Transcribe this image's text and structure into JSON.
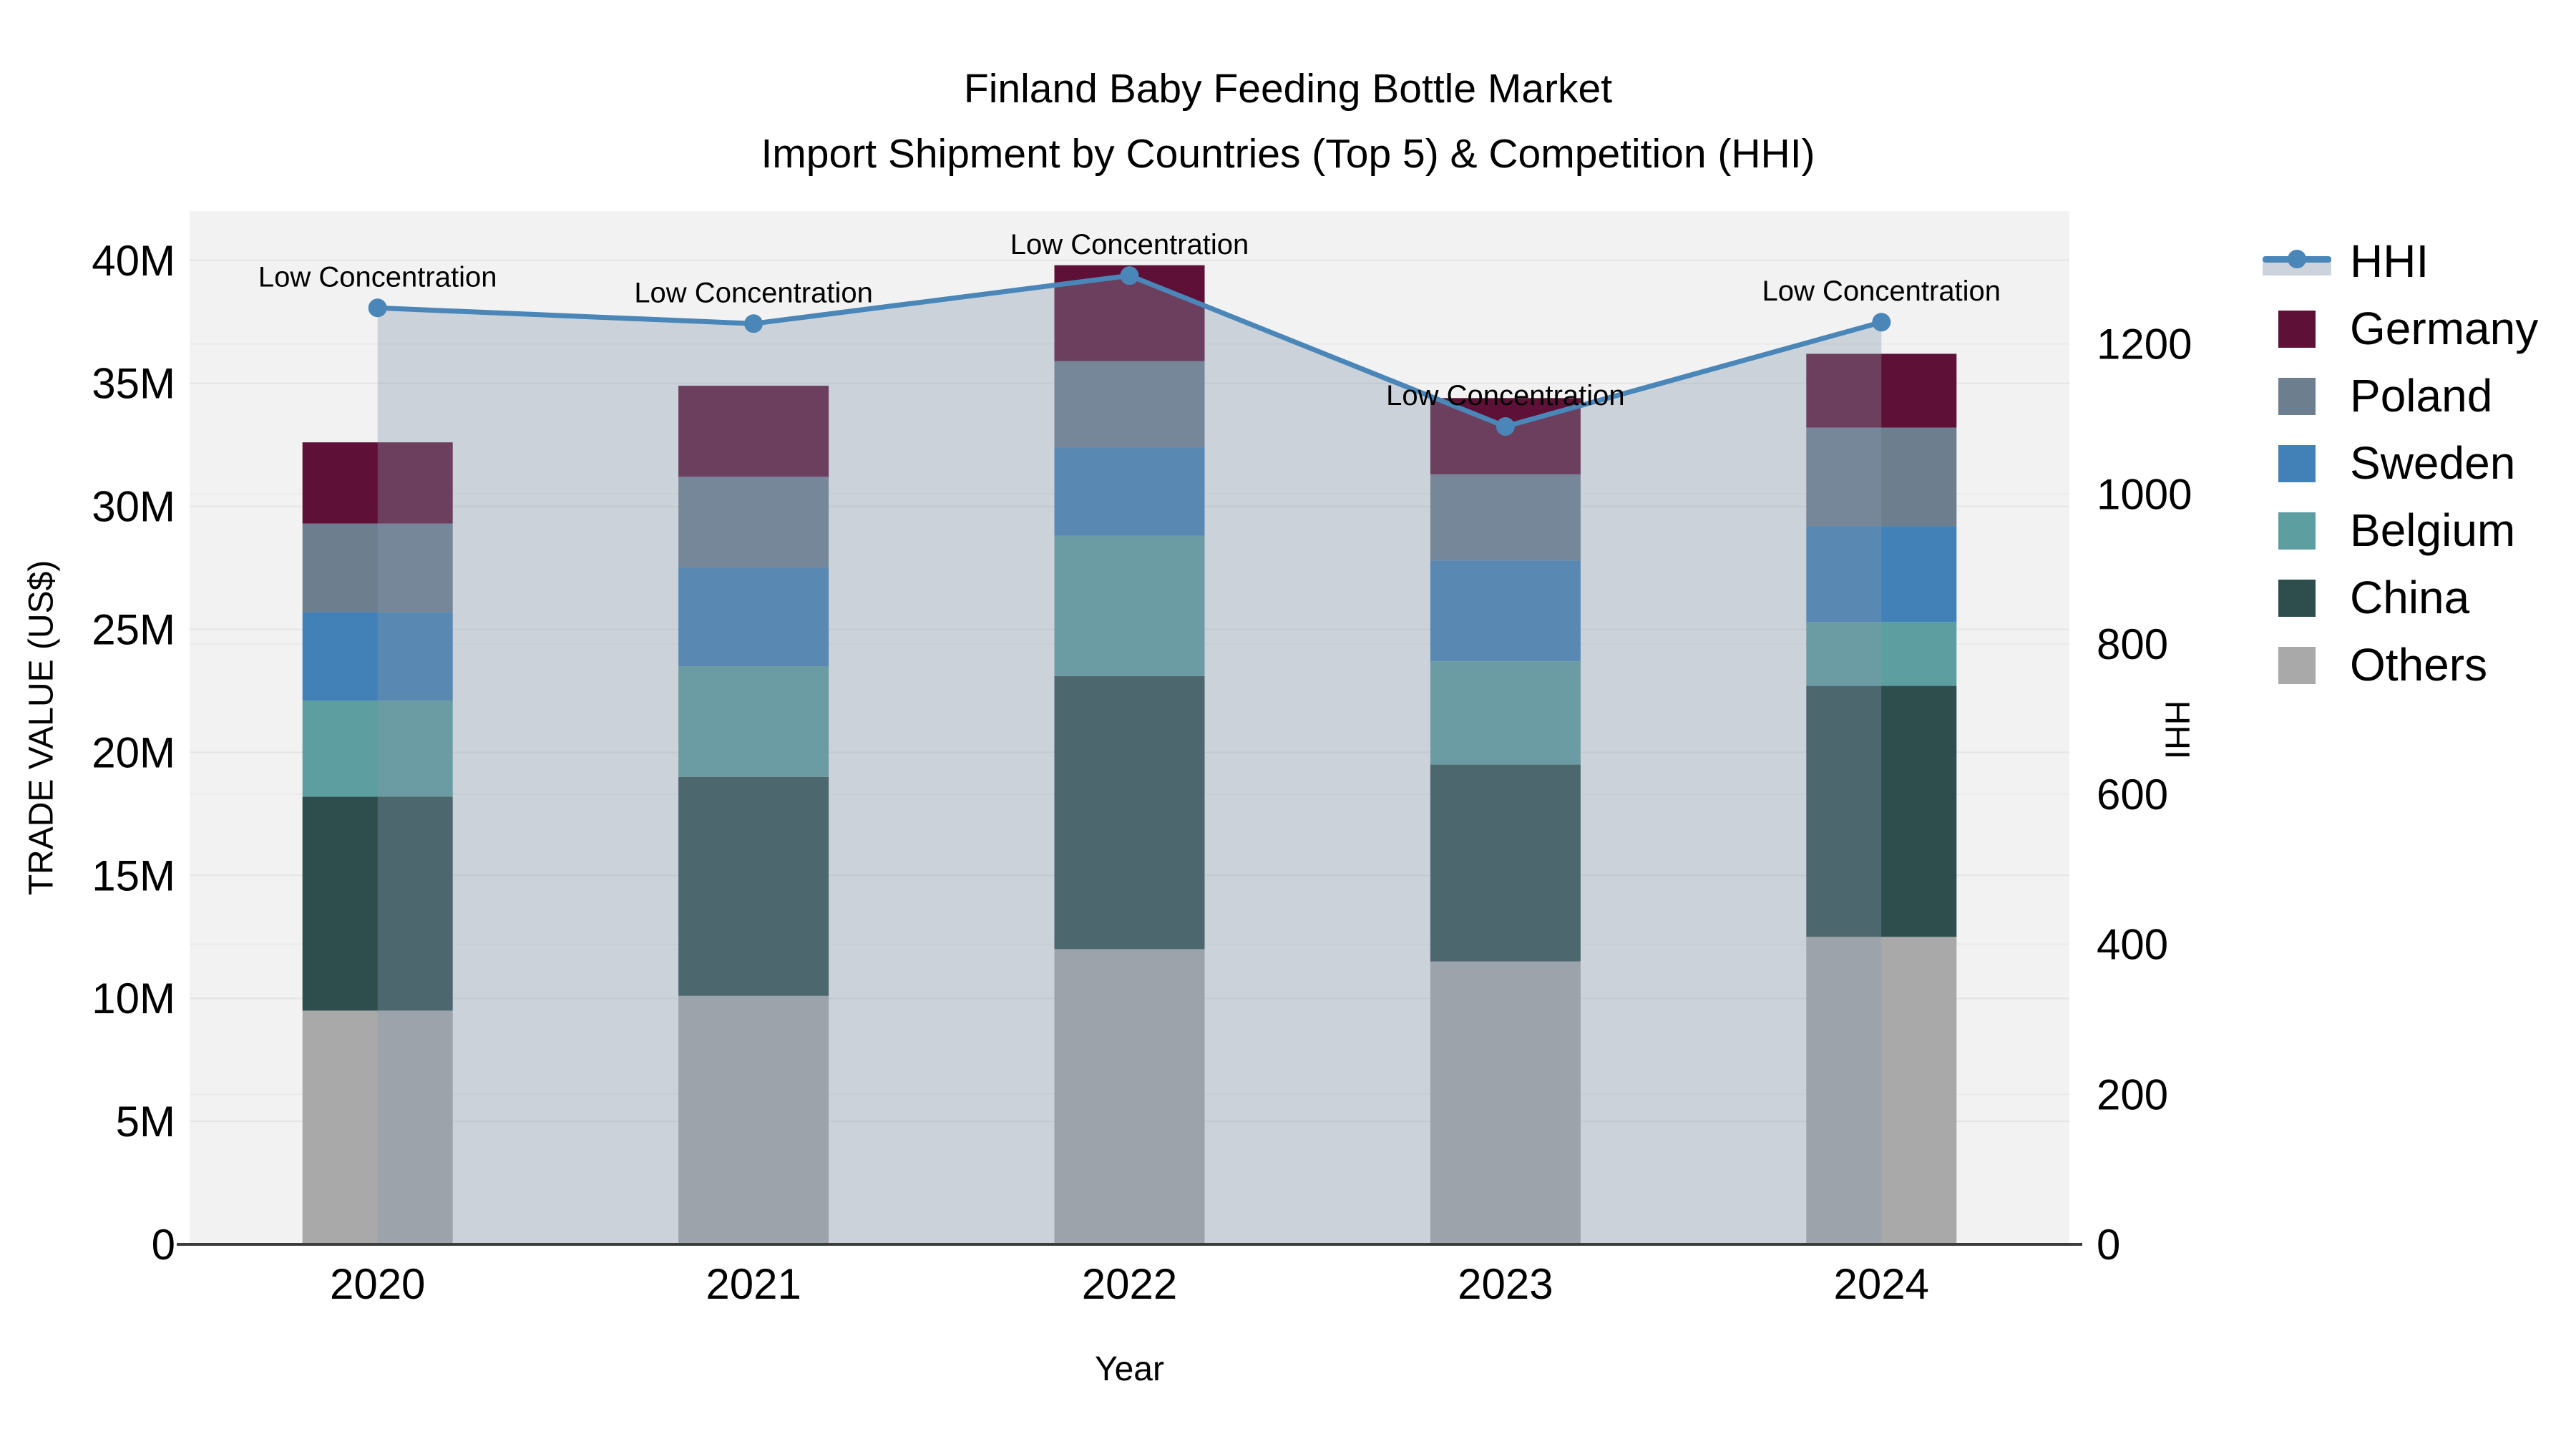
{
  "title": {
    "line1": "Finland Baby Feeding Bottle Market",
    "line2": "Import Shipment by Countries (Top 5) & Competition (HHI)"
  },
  "axes": {
    "left_title": "TRADE VALUE (US$)",
    "right_title": "HHI",
    "x_title": "Year"
  },
  "legend": {
    "items": [
      {
        "label": "HHI",
        "type": "line",
        "color": "#4a86b8"
      },
      {
        "label": "Germany",
        "type": "swatch",
        "color": "#5e1037"
      },
      {
        "label": "Poland",
        "type": "swatch",
        "color": "#6d7f8f"
      },
      {
        "label": "Sweden",
        "type": "swatch",
        "color": "#4181b7"
      },
      {
        "label": "Belgium",
        "type": "swatch",
        "color": "#5d9ea0"
      },
      {
        "label": "China",
        "type": "swatch",
        "color": "#2e4d4d"
      },
      {
        "label": "Others",
        "type": "swatch",
        "color": "#a9a9a9"
      }
    ]
  },
  "chart_data": {
    "type": "bar+line",
    "bar_mode": "stacked",
    "categories": [
      "2020",
      "2021",
      "2022",
      "2023",
      "2024"
    ],
    "series": [
      {
        "name": "Others",
        "color": "#a9a9a9",
        "values": [
          9.5,
          10.1,
          12.0,
          11.5,
          12.5
        ]
      },
      {
        "name": "China",
        "color": "#2e4d4d",
        "values": [
          8.7,
          8.9,
          11.1,
          8.0,
          10.2
        ]
      },
      {
        "name": "Belgium",
        "color": "#5d9ea0",
        "values": [
          3.9,
          4.5,
          5.7,
          4.2,
          2.6
        ]
      },
      {
        "name": "Sweden",
        "color": "#4181b7",
        "values": [
          3.6,
          4.0,
          3.6,
          4.1,
          3.9
        ]
      },
      {
        "name": "Poland",
        "color": "#6d7f8f",
        "values": [
          3.6,
          3.7,
          3.5,
          3.5,
          4.0
        ]
      },
      {
        "name": "Germany",
        "color": "#5e1037",
        "values": [
          3.3,
          3.7,
          3.9,
          3.1,
          3.0
        ]
      }
    ],
    "bar_totals": [
      32.6,
      34.9,
      39.8,
      34.4,
      36.2
    ],
    "line_series": {
      "name": "HHI",
      "axis": "right",
      "color": "#4a86b8",
      "fill_color": "rgba(136,151,171,0.35)",
      "values": [
        1248,
        1227,
        1291,
        1090,
        1229
      ]
    },
    "annotations": [
      "Low Concentration",
      "Low Concentration",
      "Low Concentration",
      "Low Concentration",
      "Low Concentration"
    ],
    "left_axis": {
      "title": "TRADE VALUE (US$)",
      "range": [
        0,
        42
      ],
      "tick_values": [
        0,
        5,
        10,
        15,
        20,
        25,
        30,
        35,
        40
      ],
      "tick_labels": [
        "0",
        "5M",
        "10M",
        "15M",
        "20M",
        "25M",
        "30M",
        "35M",
        "40M"
      ],
      "unit": "millions US$"
    },
    "right_axis": {
      "title": "HHI",
      "range": [
        0,
        1377
      ],
      "tick_values": [
        0,
        200,
        400,
        600,
        800,
        1000,
        1200
      ],
      "tick_labels": [
        "0",
        "200",
        "400",
        "600",
        "800",
        "1000",
        "1200"
      ]
    },
    "xlabel": "Year",
    "title": "Finland Baby Feeding Bottle Market — Import Shipment by Countries (Top 5) & Competition (HHI)",
    "grid": true,
    "legend_position": "right",
    "plot_bg": "#f2f2f2"
  }
}
